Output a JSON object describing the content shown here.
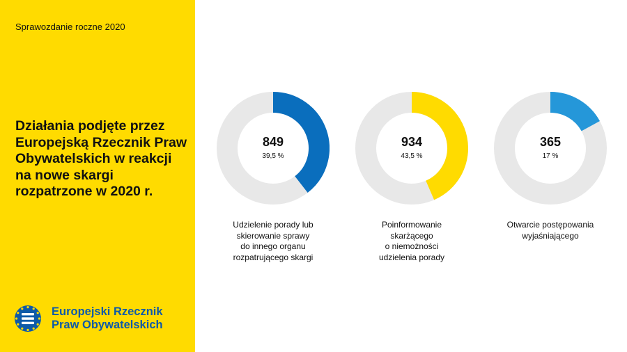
{
  "header": {
    "report_label": "Sprawozdanie roczne 2020"
  },
  "headline": "Działania podjęte przez Europejską Rzecznik Praw Obywatelskich w reakcji na nowe skargi rozpatrzone w 2020 r.",
  "logo": {
    "line1": "Europejski Rzecznik",
    "line2": "Praw Obywatelskich",
    "icon": "euro-ombudsman-icon"
  },
  "colors": {
    "sidebar": "#FFDB00",
    "track": "#E8E8E8",
    "logo_blue": "#0E5AA8"
  },
  "chart_data": [
    {
      "type": "pie",
      "value": 849,
      "value_label": "849",
      "percent": 39.5,
      "percent_label": "39,5 %",
      "color": "#0A6EBD",
      "label_lines": [
        "Udzielenie porady lub",
        "skierowanie sprawy",
        "do innego organu",
        "rozpatrującego skargi"
      ]
    },
    {
      "type": "pie",
      "value": 934,
      "value_label": "934",
      "percent": 43.5,
      "percent_label": "43,5 %",
      "color": "#FFDB00",
      "label_lines": [
        "Poinformowanie",
        "skarżącego",
        "o niemożności",
        "udzielenia porady"
      ]
    },
    {
      "type": "pie",
      "value": 365,
      "value_label": "365",
      "percent": 17,
      "percent_label": "17 %",
      "color": "#2597D9",
      "label_lines": [
        "Otwarcie postępowania",
        "wyjaśniającego"
      ]
    }
  ]
}
